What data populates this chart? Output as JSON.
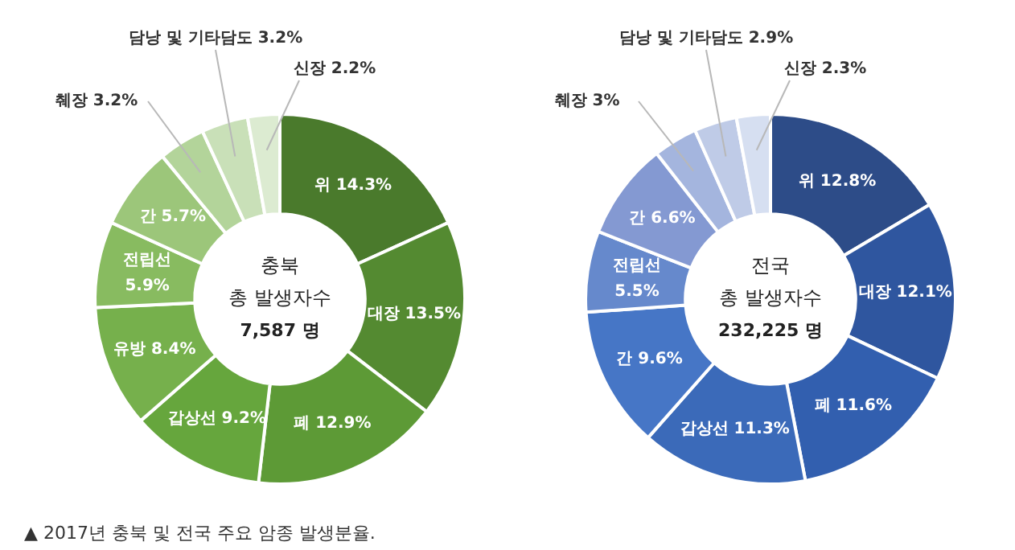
{
  "chart_data": [
    {
      "type": "donut",
      "title": "충북",
      "subtitle": "총 발생자수",
      "annotations": [
        "7,587 명",
        "▲ 2017년 충북 및 전국 주요 암종 발생분율."
      ],
      "categories": [
        "위",
        "대장",
        "폐",
        "갑상선",
        "유방",
        "전립선",
        "간",
        "췌장",
        "담낭 및 기타담도",
        "신장"
      ],
      "values": [
        14.3,
        13.5,
        12.9,
        9.2,
        8.4,
        5.9,
        5.7,
        3.2,
        3.2,
        2.2
      ],
      "value_labels": [
        "14.3%",
        "13.5%",
        "12.9%",
        "9.2%",
        "8.4%",
        "5.9%",
        "5.7%",
        "3.2%",
        "3.2%",
        "2.2%"
      ],
      "colors": [
        "#4a7a2c",
        "#548a31",
        "#5d9a36",
        "#66a63d",
        "#76b04c",
        "#88bb60",
        "#9cc67a",
        "#b3d49a",
        "#c9e0b8",
        "#dcebd1"
      ]
    },
    {
      "type": "donut",
      "title": "전국",
      "subtitle": "총 발생자수",
      "annotations": [
        "232,225 명"
      ],
      "categories": [
        "위",
        "대장",
        "폐",
        "갑상선",
        "간",
        "전립선",
        "간",
        "췌장",
        "담낭 및 기타담도",
        "신장"
      ],
      "values": [
        12.8,
        12.1,
        11.6,
        11.3,
        9.6,
        5.5,
        6.6,
        3,
        2.9,
        2.3
      ],
      "value_labels": [
        "12.8%",
        "12.1%",
        "11.6%",
        "11.3%",
        "9.6%",
        "5.5%",
        "6.6%",
        "3%",
        "2.9%",
        "2.3%"
      ],
      "colors": [
        "#2d4c88",
        "#2f569f",
        "#325faf",
        "#3b6ab9",
        "#4676c6",
        "#6689cc",
        "#8499d2",
        "#a4b5de",
        "#bfcbe7",
        "#d6dff1"
      ]
    }
  ]
}
